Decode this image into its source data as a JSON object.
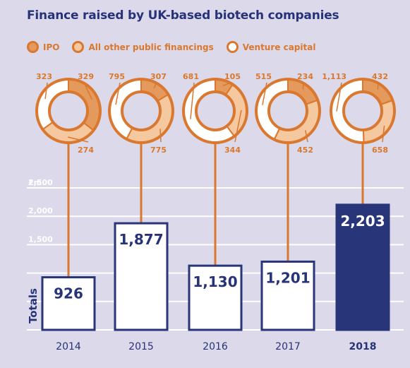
{
  "colors": {
    "background": "#dcd9ea",
    "title": "#273379",
    "accent": "#d9782e",
    "ipo": "#e49a5d",
    "other_public": "#f5c8a0",
    "venture": "#ffffff",
    "bar_fill": "#ffffff",
    "bar_highlight": "#283579",
    "bar_text": "#273379",
    "gridline": "#ffffff",
    "axis_text": "#273379"
  },
  "legend": [
    {
      "name": "IPO",
      "icon": "ipo-swatch-icon"
    },
    {
      "name": "All other public financings",
      "icon": "other-public-swatch-icon"
    },
    {
      "name": "Venture capital",
      "icon": "venture-swatch-icon"
    }
  ],
  "chart_data": {
    "type": "bar",
    "title": "Finance raised by UK-based biotech companies",
    "ylabel": "Totals",
    "unit": "£m",
    "ylim": [
      0,
      2500
    ],
    "yticks": [
      1500,
      2000,
      2500
    ],
    "ytick_labels": [
      "1,500",
      "2,000",
      "2,500"
    ],
    "grid": true,
    "categories": [
      "2014",
      "2015",
      "2016",
      "2017",
      "2018"
    ],
    "values": [
      926,
      1877,
      1130,
      1201,
      2203
    ],
    "value_labels": [
      "926",
      "1,877",
      "1,130",
      "1,201",
      "2,203"
    ],
    "highlight_index": 4,
    "breakdown": {
      "series": [
        "IPO",
        "All other public financings",
        "Venture capital"
      ],
      "values": [
        [
          329,
          274,
          323
        ],
        [
          307,
          775,
          795
        ],
        [
          105,
          344,
          681
        ],
        [
          234,
          452,
          515
        ],
        [
          432,
          658,
          1113
        ]
      ],
      "labels": [
        [
          "329",
          "274",
          "323"
        ],
        [
          "307",
          "775",
          "795"
        ],
        [
          "105",
          "344",
          "681"
        ],
        [
          "234",
          "452",
          "515"
        ],
        [
          "432",
          "658",
          "1,113"
        ]
      ]
    }
  }
}
